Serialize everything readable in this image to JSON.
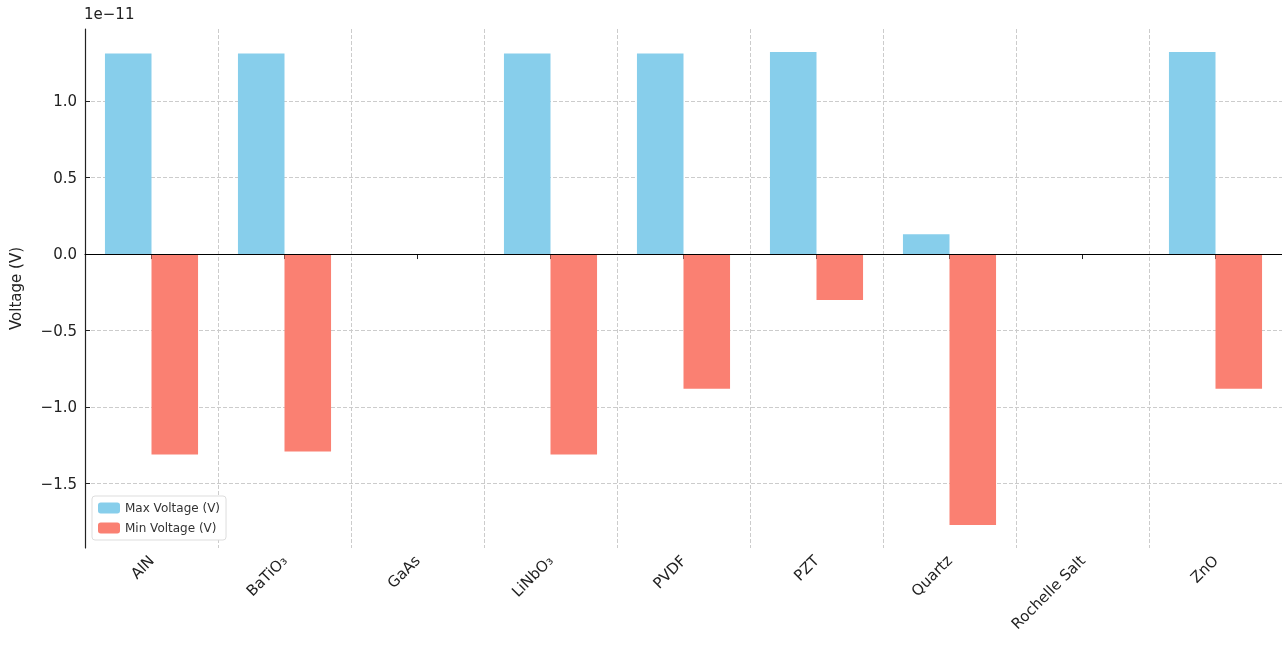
{
  "chart_data": {
    "type": "bar",
    "ylabel": "Voltage (V)",
    "annotations": [
      "1e−11"
    ],
    "categories": [
      "AlN",
      "BaTiO₃",
      "GaAs",
      "LiNbO₃",
      "PVDF",
      "PZT",
      "Quartz",
      "Rochelle Salt",
      "ZnO"
    ],
    "series": [
      {
        "name": "Max Voltage (V)",
        "color": "#87ceeb",
        "values": [
          1.31,
          1.31,
          null,
          1.31,
          1.31,
          1.32,
          0.13,
          null,
          1.32
        ]
      },
      {
        "name": "Min Voltage (V)",
        "color": "#fa8072",
        "values": [
          -1.31,
          -1.29,
          null,
          -1.31,
          -0.88,
          -0.3,
          -1.77,
          null,
          -0.88
        ]
      }
    ],
    "ylim": [
      -1.92,
      1.47
    ],
    "yticks": [
      -1.5,
      {
        "value": -1,
        "label": "−1.0"
      },
      -0.5,
      {
        "value": 0,
        "label": "0.0"
      },
      0.5,
      {
        "value": 1,
        "label": "1.0"
      }
    ],
    "ref_lines": [
      {
        "axis": "y",
        "value": 0,
        "color": "#000000"
      }
    ],
    "grid": true,
    "legend": "bottom left"
  }
}
